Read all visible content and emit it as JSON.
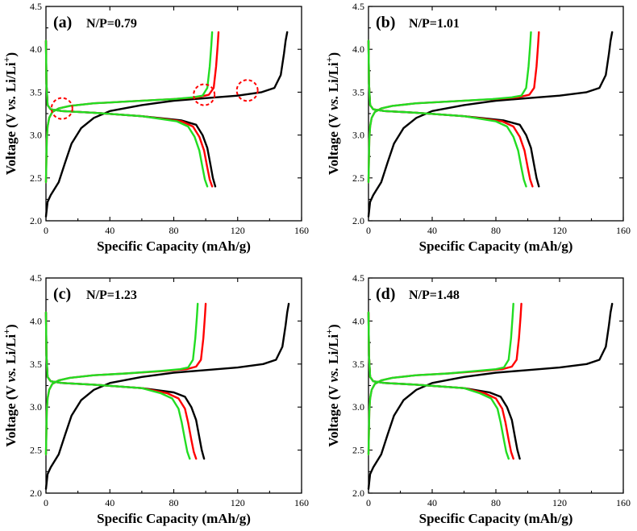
{
  "figure_colors": {
    "black": "#000000",
    "red": "#ff0000",
    "green": "#22dd22",
    "marker": "#ff0000"
  },
  "chart_data": [
    {
      "type": "line",
      "panel_label": "(a)",
      "title": "N/P=0.79",
      "xlabel": "Specific Capacity (mAh/g)",
      "ylabel": "Voltage (V vs. Li/Li+)",
      "ylabel_parts": {
        "pre": "Voltage (V ",
        "italic": "vs.",
        "post": " Li/Li",
        "sup": "+",
        "close": ")"
      },
      "xlim": [
        0,
        160
      ],
      "ylim": [
        2.0,
        4.5
      ],
      "xticks": [
        "0",
        "40",
        "80",
        "120",
        "160"
      ],
      "yticks": [
        "2.0",
        "2.5",
        "3.0",
        "3.5",
        "4.0",
        "4.5"
      ],
      "xmax_charge": {
        "black": 151,
        "red": 108,
        "green": 104
      },
      "xmax_discharge": {
        "black": 106,
        "red": 104,
        "green": 101
      },
      "annotations": [
        {
          "x": 10,
          "y": 3.31
        },
        {
          "x": 99,
          "y": 3.47
        },
        {
          "x": 126,
          "y": 3.52
        }
      ],
      "series": [
        {
          "name": "charge-black",
          "color": "#000000",
          "x": [
            0,
            1,
            3,
            8,
            12,
            16,
            22,
            30,
            40,
            60,
            80,
            100,
            120,
            135,
            143,
            147,
            149,
            150,
            151
          ],
          "y": [
            2.05,
            2.22,
            2.3,
            2.45,
            2.68,
            2.9,
            3.08,
            3.2,
            3.28,
            3.35,
            3.4,
            3.43,
            3.46,
            3.5,
            3.55,
            3.7,
            3.95,
            4.1,
            4.2
          ]
        },
        {
          "name": "charge-red",
          "color": "#ff0000",
          "x": [
            0,
            0.5,
            1,
            2,
            4,
            8,
            15,
            30,
            50,
            80,
            95,
            102,
            105,
            106.5,
            107.5,
            108
          ],
          "y": [
            2.45,
            2.95,
            3.1,
            3.2,
            3.27,
            3.31,
            3.34,
            3.37,
            3.39,
            3.42,
            3.44,
            3.47,
            3.55,
            3.8,
            4.05,
            4.2
          ]
        },
        {
          "name": "charge-green",
          "color": "#22dd22",
          "x": [
            0,
            0.5,
            1,
            2,
            4,
            8,
            15,
            30,
            50,
            80,
            92,
            98,
            101,
            102.5,
            103.5,
            104
          ],
          "y": [
            2.45,
            2.95,
            3.1,
            3.2,
            3.27,
            3.31,
            3.34,
            3.37,
            3.39,
            3.42,
            3.44,
            3.46,
            3.55,
            3.8,
            4.05,
            4.2
          ]
        },
        {
          "name": "discharge-black",
          "color": "#000000",
          "x": [
            0,
            0.3,
            1,
            3,
            10,
            30,
            60,
            85,
            94,
            98,
            101,
            103,
            104.5,
            106
          ],
          "y": [
            4.1,
            3.6,
            3.35,
            3.3,
            3.28,
            3.26,
            3.22,
            3.17,
            3.12,
            3.0,
            2.85,
            2.65,
            2.5,
            2.4
          ]
        },
        {
          "name": "discharge-red",
          "color": "#ff0000",
          "x": [
            0,
            0.3,
            1,
            3,
            10,
            30,
            60,
            85,
            92,
            96,
            99,
            101,
            102.5,
            104
          ],
          "y": [
            4.1,
            3.6,
            3.35,
            3.3,
            3.28,
            3.26,
            3.22,
            3.16,
            3.1,
            2.98,
            2.82,
            2.62,
            2.48,
            2.4
          ]
        },
        {
          "name": "discharge-green",
          "color": "#22dd22",
          "x": [
            0,
            0.3,
            1,
            3,
            10,
            30,
            60,
            82,
            89,
            93,
            96,
            98,
            99.5,
            101
          ],
          "y": [
            4.1,
            3.6,
            3.35,
            3.3,
            3.28,
            3.26,
            3.22,
            3.16,
            3.1,
            2.98,
            2.82,
            2.62,
            2.48,
            2.4
          ]
        }
      ]
    },
    {
      "type": "line",
      "panel_label": "(b)",
      "title": "N/P=1.01",
      "xlabel": "Specific Capacity (mAh/g)",
      "ylabel": "Voltage (V vs. Li/Li+)",
      "ylabel_parts": {
        "pre": "Voltage (V ",
        "italic": "vs.",
        "post": " Li/Li",
        "sup": "+",
        "close": ")"
      },
      "xlim": [
        0,
        160
      ],
      "ylim": [
        2.0,
        4.5
      ],
      "xticks": [
        "0",
        "40",
        "80",
        "120",
        "160"
      ],
      "yticks": [
        "2.0",
        "2.5",
        "3.0",
        "3.5",
        "4.0",
        "4.5"
      ],
      "xmax_charge": {
        "black": 153,
        "red": 107,
        "green": 102
      },
      "xmax_discharge": {
        "black": 107,
        "red": 103,
        "green": 99
      },
      "annotations": [],
      "series": [
        {
          "name": "charge-black",
          "color": "#000000",
          "x": [
            0,
            1,
            3,
            8,
            12,
            16,
            22,
            30,
            40,
            60,
            80,
            100,
            120,
            137,
            145,
            149,
            151,
            152,
            153
          ],
          "y": [
            2.05,
            2.22,
            2.3,
            2.45,
            2.68,
            2.9,
            3.08,
            3.2,
            3.28,
            3.35,
            3.4,
            3.43,
            3.46,
            3.5,
            3.55,
            3.7,
            3.95,
            4.1,
            4.2
          ]
        },
        {
          "name": "charge-red",
          "color": "#ff0000",
          "x": [
            0,
            0.5,
            1,
            2,
            4,
            8,
            15,
            30,
            50,
            80,
            94,
            101,
            104,
            105.5,
            106.5,
            107
          ],
          "y": [
            2.45,
            2.95,
            3.1,
            3.2,
            3.27,
            3.31,
            3.34,
            3.37,
            3.39,
            3.42,
            3.44,
            3.47,
            3.55,
            3.8,
            4.05,
            4.2
          ]
        },
        {
          "name": "charge-green",
          "color": "#22dd22",
          "x": [
            0,
            0.5,
            1,
            2,
            4,
            8,
            15,
            30,
            50,
            78,
            90,
            96,
            99,
            100.5,
            101.5,
            102
          ],
          "y": [
            2.45,
            2.95,
            3.1,
            3.2,
            3.27,
            3.31,
            3.34,
            3.37,
            3.39,
            3.42,
            3.44,
            3.46,
            3.55,
            3.8,
            4.05,
            4.2
          ]
        },
        {
          "name": "discharge-black",
          "color": "#000000",
          "x": [
            0,
            0.3,
            1,
            3,
            10,
            30,
            60,
            85,
            95,
            99,
            102,
            104,
            105.5,
            107
          ],
          "y": [
            4.1,
            3.6,
            3.35,
            3.3,
            3.28,
            3.26,
            3.22,
            3.17,
            3.12,
            3.0,
            2.85,
            2.65,
            2.5,
            2.4
          ]
        },
        {
          "name": "discharge-red",
          "color": "#ff0000",
          "x": [
            0,
            0.3,
            1,
            3,
            10,
            30,
            60,
            84,
            91,
            95,
            98,
            100,
            101.5,
            103
          ],
          "y": [
            4.1,
            3.6,
            3.35,
            3.3,
            3.28,
            3.26,
            3.22,
            3.16,
            3.1,
            2.98,
            2.82,
            2.62,
            2.48,
            2.4
          ]
        },
        {
          "name": "discharge-green",
          "color": "#22dd22",
          "x": [
            0,
            0.3,
            1,
            3,
            10,
            30,
            60,
            80,
            87,
            91,
            94,
            96,
            97.5,
            99
          ],
          "y": [
            4.1,
            3.6,
            3.35,
            3.3,
            3.28,
            3.26,
            3.22,
            3.16,
            3.1,
            2.98,
            2.82,
            2.62,
            2.48,
            2.4
          ]
        }
      ]
    },
    {
      "type": "line",
      "panel_label": "(c)",
      "title": "N/P=1.23",
      "xlabel": "Specific Capacity (mAh/g)",
      "ylabel": "Voltage (V vs. Li/Li+)",
      "ylabel_parts": {
        "pre": "Voltage (V ",
        "italic": "vs.",
        "post": " Li/Li",
        "sup": "+",
        "close": ")"
      },
      "xlim": [
        0,
        160
      ],
      "ylim": [
        2.0,
        4.5
      ],
      "xticks": [
        "0",
        "40",
        "80",
        "120",
        "160"
      ],
      "yticks": [
        "2.0",
        "2.5",
        "3.0",
        "3.5",
        "4.0",
        "4.5"
      ],
      "xmax_charge": {
        "black": 152,
        "red": 100,
        "green": 95
      },
      "xmax_discharge": {
        "black": 99,
        "red": 94,
        "green": 90
      },
      "annotations": [],
      "series": [
        {
          "name": "charge-black",
          "color": "#000000",
          "x": [
            0,
            1,
            3,
            8,
            12,
            16,
            22,
            30,
            40,
            60,
            80,
            100,
            120,
            136,
            144,
            148,
            150,
            151,
            152
          ],
          "y": [
            2.05,
            2.22,
            2.3,
            2.45,
            2.68,
            2.9,
            3.08,
            3.2,
            3.28,
            3.35,
            3.4,
            3.43,
            3.46,
            3.5,
            3.55,
            3.7,
            3.95,
            4.1,
            4.2
          ]
        },
        {
          "name": "charge-red",
          "color": "#ff0000",
          "x": [
            0,
            0.5,
            1,
            2,
            4,
            8,
            15,
            30,
            50,
            75,
            88,
            94,
            97,
            98.5,
            99.5,
            100
          ],
          "y": [
            2.45,
            2.95,
            3.1,
            3.2,
            3.27,
            3.31,
            3.34,
            3.37,
            3.39,
            3.42,
            3.44,
            3.47,
            3.55,
            3.8,
            4.05,
            4.2
          ]
        },
        {
          "name": "charge-green",
          "color": "#22dd22",
          "x": [
            0,
            0.5,
            1,
            2,
            4,
            8,
            15,
            30,
            50,
            72,
            84,
            89,
            92,
            93.5,
            94.5,
            95
          ],
          "y": [
            2.45,
            2.95,
            3.1,
            3.2,
            3.27,
            3.31,
            3.34,
            3.37,
            3.39,
            3.42,
            3.44,
            3.46,
            3.55,
            3.8,
            4.05,
            4.2
          ]
        },
        {
          "name": "discharge-black",
          "color": "#000000",
          "x": [
            0,
            0.3,
            1,
            3,
            10,
            30,
            60,
            80,
            87,
            91,
            94,
            96,
            97.5,
            99
          ],
          "y": [
            4.1,
            3.6,
            3.35,
            3.3,
            3.28,
            3.26,
            3.22,
            3.17,
            3.12,
            3.0,
            2.85,
            2.65,
            2.5,
            2.4
          ]
        },
        {
          "name": "discharge-red",
          "color": "#ff0000",
          "x": [
            0,
            0.3,
            1,
            3,
            10,
            30,
            60,
            76,
            83,
            87,
            89,
            91,
            92.5,
            94
          ],
          "y": [
            4.1,
            3.6,
            3.35,
            3.3,
            3.28,
            3.26,
            3.22,
            3.16,
            3.1,
            2.98,
            2.82,
            2.62,
            2.48,
            2.4
          ]
        },
        {
          "name": "discharge-green",
          "color": "#22dd22",
          "x": [
            0,
            0.3,
            1,
            3,
            10,
            30,
            60,
            72,
            79,
            83,
            85,
            87,
            88.5,
            90
          ],
          "y": [
            4.1,
            3.6,
            3.35,
            3.3,
            3.28,
            3.26,
            3.22,
            3.16,
            3.1,
            2.98,
            2.82,
            2.62,
            2.48,
            2.4
          ]
        }
      ]
    },
    {
      "type": "line",
      "panel_label": "(d)",
      "title": "N/P=1.48",
      "xlabel": "Specific Capacity (mAh/g)",
      "ylabel": "Voltage (V vs. Li/Li+)",
      "ylabel_parts": {
        "pre": "Voltage (V ",
        "italic": "vs.",
        "post": " Li/Li",
        "sup": "+",
        "close": ")"
      },
      "xlim": [
        0,
        160
      ],
      "ylim": [
        2.0,
        4.5
      ],
      "xticks": [
        "0",
        "40",
        "80",
        "120",
        "160"
      ],
      "yticks": [
        "2.0",
        "2.5",
        "3.0",
        "3.5",
        "4.0",
        "4.5"
      ],
      "xmax_charge": {
        "black": 153,
        "red": 96,
        "green": 91
      },
      "xmax_discharge": {
        "black": 95,
        "red": 91,
        "green": 88
      },
      "annotations": [],
      "series": [
        {
          "name": "charge-black",
          "color": "#000000",
          "x": [
            0,
            1,
            3,
            8,
            12,
            16,
            22,
            30,
            40,
            60,
            80,
            100,
            120,
            137,
            145,
            149,
            151,
            152,
            153
          ],
          "y": [
            2.05,
            2.22,
            2.3,
            2.45,
            2.68,
            2.9,
            3.08,
            3.2,
            3.28,
            3.35,
            3.4,
            3.43,
            3.46,
            3.5,
            3.55,
            3.7,
            3.95,
            4.1,
            4.2
          ]
        },
        {
          "name": "charge-red",
          "color": "#ff0000",
          "x": [
            0,
            0.5,
            1,
            2,
            4,
            8,
            15,
            30,
            50,
            72,
            84,
            90,
            93,
            94.5,
            95.5,
            96
          ],
          "y": [
            2.45,
            2.95,
            3.1,
            3.2,
            3.27,
            3.31,
            3.34,
            3.37,
            3.39,
            3.42,
            3.44,
            3.47,
            3.55,
            3.8,
            4.05,
            4.2
          ]
        },
        {
          "name": "charge-green",
          "color": "#22dd22",
          "x": [
            0,
            0.5,
            1,
            2,
            4,
            8,
            15,
            30,
            50,
            68,
            80,
            85,
            88,
            89.5,
            90.5,
            91
          ],
          "y": [
            2.45,
            2.95,
            3.1,
            3.2,
            3.27,
            3.31,
            3.34,
            3.37,
            3.39,
            3.42,
            3.44,
            3.46,
            3.55,
            3.8,
            4.05,
            4.2
          ]
        },
        {
          "name": "discharge-black",
          "color": "#000000",
          "x": [
            0,
            0.3,
            1,
            3,
            10,
            30,
            60,
            76,
            83,
            87,
            90,
            92,
            93.5,
            95
          ],
          "y": [
            4.1,
            3.6,
            3.35,
            3.3,
            3.28,
            3.26,
            3.22,
            3.17,
            3.12,
            3.0,
            2.85,
            2.65,
            2.5,
            2.4
          ]
        },
        {
          "name": "discharge-red",
          "color": "#ff0000",
          "x": [
            0,
            0.3,
            1,
            3,
            10,
            30,
            60,
            73,
            80,
            84,
            86,
            88,
            89.5,
            91
          ],
          "y": [
            4.1,
            3.6,
            3.35,
            3.3,
            3.28,
            3.26,
            3.22,
            3.16,
            3.1,
            2.98,
            2.82,
            2.62,
            2.48,
            2.4
          ]
        },
        {
          "name": "discharge-green",
          "color": "#22dd22",
          "x": [
            0,
            0.3,
            1,
            3,
            10,
            30,
            60,
            70,
            77,
            81,
            83,
            85,
            86.5,
            88
          ],
          "y": [
            4.1,
            3.6,
            3.35,
            3.3,
            3.28,
            3.26,
            3.22,
            3.16,
            3.1,
            2.98,
            2.82,
            2.62,
            2.48,
            2.4
          ]
        }
      ]
    }
  ]
}
